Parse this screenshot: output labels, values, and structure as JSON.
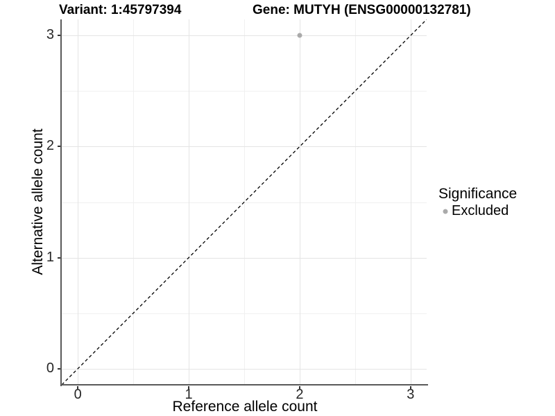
{
  "chart_data": {
    "type": "scatter",
    "title_left": "Variant: 1:45797394",
    "title_right": "Gene: MUTYH (ENSG00000132781)",
    "xlabel": "Reference allele count",
    "ylabel": "Alternative allele count",
    "xlim": [
      -0.145,
      3.145
    ],
    "ylim": [
      -0.145,
      3.145
    ],
    "x_ticks": [
      0,
      1,
      2,
      3
    ],
    "y_ticks": [
      0,
      1,
      2,
      3
    ],
    "x_minor_ticks": [
      0.5,
      1.5,
      2.5
    ],
    "y_minor_ticks": [
      0.5,
      1.5,
      2.5
    ],
    "grid": "major+minor",
    "background_color": "#ffffff",
    "identity_line": {
      "style": "dashed",
      "slope": 1,
      "intercept": 0,
      "color": "#000000"
    },
    "series": [
      {
        "name": "Excluded",
        "color": "#aaaaaa",
        "marker": "circle",
        "points": [
          {
            "x": 2,
            "y": 3
          }
        ]
      }
    ],
    "legend": {
      "title": "Significance",
      "position": "right",
      "items": [
        {
          "label": "Excluded",
          "color": "#aaaaaa",
          "marker": "circle"
        }
      ]
    }
  }
}
